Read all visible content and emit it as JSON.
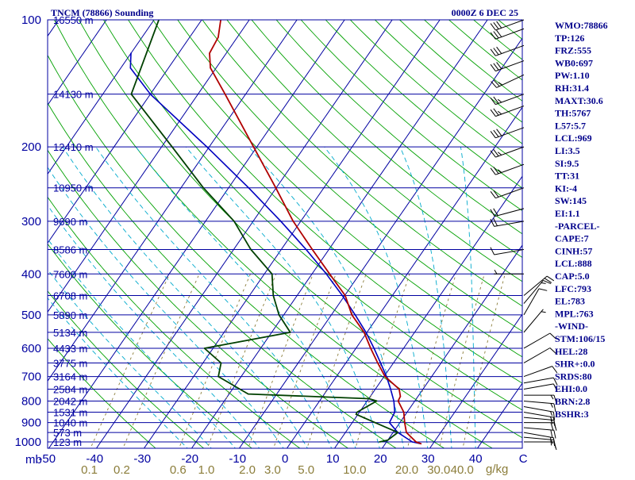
{
  "header": {
    "station_title": "TNCM (78866) Sounding",
    "valid_time": "0000Z  6 DEC 25"
  },
  "indices": [
    "WMO:78866",
    "TP:126",
    "FRZ:555",
    "WB0:697",
    "PW:1.10",
    "RH:31.4",
    "MAXT:30.6",
    "TH:5767",
    "L57:5.7",
    "LCL:969",
    "LI:3.5",
    "SI:9.5",
    "TT:31",
    "KI:-4",
    "SW:145",
    "EI:1.1",
    "-PARCEL-",
    "CAPE:7",
    "CINH:57",
    "LCL:888",
    "CAP:5.0",
    "LFC:793",
    "EL:783",
    "MPL:763",
    "-WIND-",
    "STM:106/15",
    "HEL:28",
    "SHR+:0.0",
    "SRDS:80",
    "EHI:0.0",
    "BRN:2.8",
    "BSHR:3"
  ],
  "axis_unit_left": "mb",
  "mixing_unit": "g/kg",
  "colors": {
    "frame": "#0000a0",
    "isobar": "#0000a0",
    "isotherm": "#0000a0",
    "dry_adiabat": "#00a000",
    "moist_adiabat": "#00aacc",
    "mixing_ratio": "#8b7d3a",
    "temperature": "#b00000",
    "dewpoint": "#004000",
    "parcel": "#0000c0",
    "wind": "#000000",
    "text": "#00008b"
  },
  "chart_data": {
    "type": "skew-t log-p",
    "title": "TNCM (78866) Sounding",
    "y_axis": {
      "label": "mb",
      "scale": "log",
      "ticks": [
        100,
        200,
        300,
        400,
        500,
        600,
        700,
        800,
        900,
        1000
      ],
      "range": [
        1050,
        100
      ]
    },
    "x_axis": {
      "label": "°C",
      "ticks": [
        -50,
        -40,
        -30,
        -20,
        -10,
        0,
        10,
        20,
        30,
        40
      ],
      "last_tick_label": "C",
      "range": [
        -50,
        50
      ]
    },
    "mixing_ratio_labels": [
      "0.1",
      "0.2",
      "0.6",
      "1.0",
      "2.0",
      "3.0",
      "5.0",
      "10.0",
      "20.0",
      "30.0",
      "40.0"
    ],
    "height_labels": [
      {
        "p": 100,
        "text": "16550 m"
      },
      {
        "p": 150,
        "text": "14130 m"
      },
      {
        "p": 200,
        "text": "12410 m"
      },
      {
        "p": 250,
        "text": "10950 m"
      },
      {
        "p": 300,
        "text": "9690 m"
      },
      {
        "p": 350,
        "text": "8586 m"
      },
      {
        "p": 400,
        "text": "7600 m"
      },
      {
        "p": 450,
        "text": "6708 m"
      },
      {
        "p": 500,
        "text": "5890 m"
      },
      {
        "p": 550,
        "text": "5134 m"
      },
      {
        "p": 600,
        "text": "4433 m"
      },
      {
        "p": 650,
        "text": "3775 m"
      },
      {
        "p": 700,
        "text": "3164 m"
      },
      {
        "p": 750,
        "text": "2584 m"
      },
      {
        "p": 800,
        "text": "2042 m"
      },
      {
        "p": 850,
        "text": "1531 m"
      },
      {
        "p": 900,
        "text": "1040 m"
      },
      {
        "p": 950,
        "text": "573 m"
      },
      {
        "p": 1000,
        "text": "123 m"
      }
    ],
    "temperature_profile": [
      {
        "p": 1010,
        "t": 27.5
      },
      {
        "p": 1000,
        "t": 26.2
      },
      {
        "p": 950,
        "t": 22.8
      },
      {
        "p": 900,
        "t": 21.0
      },
      {
        "p": 850,
        "t": 19.3
      },
      {
        "p": 800,
        "t": 16.5
      },
      {
        "p": 780,
        "t": 16.3
      },
      {
        "p": 750,
        "t": 15.0
      },
      {
        "p": 700,
        "t": 10.2
      },
      {
        "p": 650,
        "t": 6.7
      },
      {
        "p": 600,
        "t": 3.1
      },
      {
        "p": 550,
        "t": -0.6
      },
      {
        "p": 500,
        "t": -5.7
      },
      {
        "p": 450,
        "t": -9.9
      },
      {
        "p": 400,
        "t": -16.3
      },
      {
        "p": 350,
        "t": -23.5
      },
      {
        "p": 300,
        "t": -31.6
      },
      {
        "p": 250,
        "t": -40.1
      },
      {
        "p": 200,
        "t": -50.7
      },
      {
        "p": 150,
        "t": -64.3
      },
      {
        "p": 130,
        "t": -71.2
      },
      {
        "p": 120,
        "t": -73.5
      },
      {
        "p": 110,
        "t": -74.0
      },
      {
        "p": 100,
        "t": -76.0
      }
    ],
    "dewpoint_profile": [
      {
        "p": 1000,
        "t": 18.5
      },
      {
        "p": 990,
        "t": 20.0
      },
      {
        "p": 950,
        "t": 21.0
      },
      {
        "p": 900,
        "t": 14.8
      },
      {
        "p": 860,
        "t": 9.6
      },
      {
        "p": 850,
        "t": 9.5
      },
      {
        "p": 800,
        "t": 12.0
      },
      {
        "p": 790,
        "t": 10.0
      },
      {
        "p": 770,
        "t": -16.0
      },
      {
        "p": 700,
        "t": -24.8
      },
      {
        "p": 650,
        "t": -26.2
      },
      {
        "p": 600,
        "t": -31.8
      },
      {
        "p": 550,
        "t": -16.1
      },
      {
        "p": 500,
        "t": -21.0
      },
      {
        "p": 450,
        "t": -25.0
      },
      {
        "p": 400,
        "t": -28.4
      },
      {
        "p": 350,
        "t": -36.4
      },
      {
        "p": 300,
        "t": -44.0
      },
      {
        "p": 250,
        "t": -55.3
      },
      {
        "p": 200,
        "t": -67.8
      },
      {
        "p": 150,
        "t": -84.0
      },
      {
        "p": 100,
        "t": -89.0
      }
    ],
    "parcel_profile": [
      {
        "p": 1010,
        "t": 27.5
      },
      {
        "p": 1000,
        "t": 25.4
      },
      {
        "p": 950,
        "t": 21.0
      },
      {
        "p": 900,
        "t": 17.8
      },
      {
        "p": 850,
        "t": 17.4
      },
      {
        "p": 800,
        "t": 15.6
      },
      {
        "p": 750,
        "t": 13.2
      },
      {
        "p": 700,
        "t": 10.5
      },
      {
        "p": 650,
        "t": 7.3
      },
      {
        "p": 600,
        "t": 3.8
      },
      {
        "p": 550,
        "t": -0.2
      },
      {
        "p": 500,
        "t": -5.0
      },
      {
        "p": 450,
        "t": -10.5
      },
      {
        "p": 400,
        "t": -17.0
      },
      {
        "p": 350,
        "t": -24.8
      },
      {
        "p": 300,
        "t": -34.2
      },
      {
        "p": 250,
        "t": -45.8
      },
      {
        "p": 200,
        "t": -60.5
      },
      {
        "p": 150,
        "t": -80.0
      },
      {
        "p": 130,
        "t": -88.0
      },
      {
        "p": 120,
        "t": -90.0
      }
    ],
    "wind_barbs": [
      {
        "p": 1000,
        "dir": 90,
        "kt": 10
      },
      {
        "p": 975,
        "dir": 95,
        "kt": 15
      },
      {
        "p": 950,
        "dir": 100,
        "kt": 20
      },
      {
        "p": 925,
        "dir": 95,
        "kt": 20
      },
      {
        "p": 900,
        "dir": 90,
        "kt": 20
      },
      {
        "p": 875,
        "dir": 95,
        "kt": 15
      },
      {
        "p": 850,
        "dir": 100,
        "kt": 15
      },
      {
        "p": 825,
        "dir": 100,
        "kt": 15
      },
      {
        "p": 800,
        "dir": 95,
        "kt": 15
      },
      {
        "p": 775,
        "dir": 90,
        "kt": 15
      },
      {
        "p": 750,
        "dir": 80,
        "kt": 10
      },
      {
        "p": 725,
        "dir": 80,
        "kt": 10
      },
      {
        "p": 700,
        "dir": 70,
        "kt": 10
      },
      {
        "p": 650,
        "dir": 60,
        "kt": 10
      },
      {
        "p": 600,
        "dir": 60,
        "kt": 10
      },
      {
        "p": 550,
        "dir": 40,
        "kt": 5
      },
      {
        "p": 500,
        "dir": 30,
        "kt": 10
      },
      {
        "p": 470,
        "dir": 40,
        "kt": 15
      },
      {
        "p": 450,
        "dir": 50,
        "kt": 20
      },
      {
        "p": 400,
        "dir": 270,
        "kt": 5
      },
      {
        "p": 350,
        "dir": 260,
        "kt": 10
      },
      {
        "p": 300,
        "dir": 260,
        "kt": 20
      },
      {
        "p": 280,
        "dir": 255,
        "kt": 20
      },
      {
        "p": 250,
        "dir": 250,
        "kt": 20
      },
      {
        "p": 220,
        "dir": 250,
        "kt": 25
      },
      {
        "p": 200,
        "dir": 250,
        "kt": 25
      },
      {
        "p": 180,
        "dir": 250,
        "kt": 30
      },
      {
        "p": 160,
        "dir": 250,
        "kt": 25
      },
      {
        "p": 150,
        "dir": 250,
        "kt": 25
      },
      {
        "p": 135,
        "dir": 245,
        "kt": 25
      },
      {
        "p": 125,
        "dir": 250,
        "kt": 30
      },
      {
        "p": 115,
        "dir": 250,
        "kt": 30
      },
      {
        "p": 105,
        "dir": 250,
        "kt": 30
      },
      {
        "p": 100,
        "dir": 250,
        "kt": 30
      }
    ],
    "mixing_ratio_lines": [
      0.1,
      0.2,
      0.6,
      1.0,
      2.0,
      3.0,
      5.0,
      10.0,
      20.0,
      30.0,
      40.0
    ]
  }
}
